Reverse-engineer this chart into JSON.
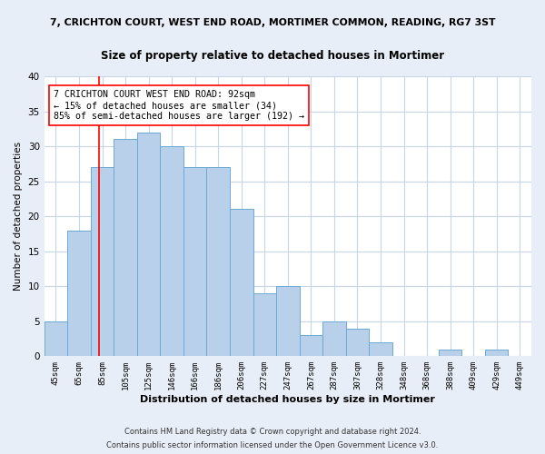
{
  "title1": "7, CRICHTON COURT, WEST END ROAD, MORTIMER COMMON, READING, RG7 3ST",
  "title2": "Size of property relative to detached houses in Mortimer",
  "xlabel": "Distribution of detached houses by size in Mortimer",
  "ylabel": "Number of detached properties",
  "categories": [
    "45sqm",
    "65sqm",
    "85sqm",
    "105sqm",
    "125sqm",
    "146sqm",
    "166sqm",
    "186sqm",
    "206sqm",
    "227sqm",
    "247sqm",
    "267sqm",
    "287sqm",
    "307sqm",
    "328sqm",
    "348sqm",
    "368sqm",
    "388sqm",
    "409sqm",
    "429sqm",
    "449sqm"
  ],
  "values": [
    5,
    18,
    27,
    31,
    32,
    30,
    27,
    27,
    21,
    9,
    10,
    3,
    5,
    4,
    2,
    0,
    0,
    1,
    0,
    1,
    0
  ],
  "bar_color": "#b8d0ea",
  "bar_edge_color": "#6aaad4",
  "bar_width": 1.0,
  "ylim": [
    0,
    40
  ],
  "yticks": [
    0,
    5,
    10,
    15,
    20,
    25,
    30,
    35,
    40
  ],
  "red_line_x": 1.85,
  "annotation_text": "7 CRICHTON COURT WEST END ROAD: 92sqm\n← 15% of detached houses are smaller (34)\n85% of semi-detached houses are larger (192) →",
  "footer1": "Contains HM Land Registry data © Crown copyright and database right 2024.",
  "footer2": "Contains public sector information licensed under the Open Government Licence v3.0.",
  "background_color": "#e8eef8",
  "plot_bg_color": "#ffffff",
  "grid_color": "#c8d4e8"
}
